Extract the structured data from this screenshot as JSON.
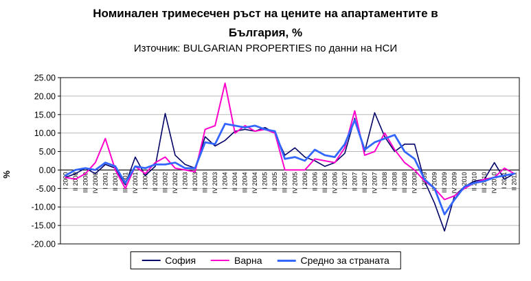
{
  "title_line1": "Номинален тримесечен ръст на цените на апартаментите в",
  "title_line2": "България, %",
  "subtitle": "Източник: BULGARIAN PROPERTIES по данни на НСИ",
  "chart_data": {
    "type": "line",
    "title": "Номинален тримесечен ръст на цените на апартаментите в България, %",
    "subtitle": "Източник: BULGARIAN PROPERTIES по данни на НСИ",
    "xlabel": "",
    "ylabel": "%",
    "ylim": [
      -20,
      25
    ],
    "ytick_step": 5,
    "yticks": [
      "25.00",
      "20.00",
      "15.00",
      "10.00",
      "5.00",
      "0.00",
      "-5.00",
      "-10.00",
      "-15.00",
      "-20.00"
    ],
    "grid": true,
    "legend_position": "bottom",
    "categories": [
      "I 2000",
      "II 2000",
      "III 2000",
      "IV 2000",
      "I 2001",
      "II 2001",
      "III 2001",
      "IV 2001",
      "I 2002",
      "II 2002",
      "III 2002",
      "IV 2002",
      "I 2003",
      "II 2003",
      "III 2003",
      "IV 2003",
      "I 2004",
      "II 2004",
      "III 2004",
      "IV 2004",
      "I 2005",
      "II 2005",
      "III 2005",
      "IV 2005",
      "I 2006",
      "II 2006",
      "III 2006",
      "IV 2006",
      "I 2007",
      "II 2007",
      "III 2007",
      "IV 2007",
      "I 2008",
      "II 2008",
      "III 2008",
      "IV 2008",
      "I 2009",
      "II 2009",
      "III 2009",
      "IV 2009",
      "I 2010",
      "II 2010",
      "III 2010",
      "IV 2010",
      "I 2011",
      "II 2011"
    ],
    "series": [
      {
        "name": "София",
        "color": "#000066",
        "width": 1.6,
        "values": [
          -2,
          -1,
          0.5,
          -1,
          1.5,
          0.5,
          -4,
          3.5,
          -1.5,
          1,
          15.3,
          4,
          1.5,
          0.5,
          9,
          6.5,
          8,
          10.5,
          11,
          10.5,
          11.5,
          10,
          4,
          6,
          3.5,
          2.5,
          1,
          2,
          4.5,
          14,
          5,
          15.5,
          9,
          5,
          7,
          7,
          -3,
          -9,
          -16.5,
          -7,
          -4.5,
          -3,
          -2.5,
          2,
          -2.5,
          -1
        ]
      },
      {
        "name": "Варна",
        "color": "#FF00CC",
        "width": 2,
        "values": [
          -2,
          -2.5,
          -1,
          2,
          8.5,
          0,
          -5,
          1,
          -1,
          2,
          3.5,
          0.5,
          0,
          -0.5,
          11,
          12,
          23.5,
          10,
          12,
          10.5,
          11,
          10,
          0,
          0,
          0,
          3,
          2.5,
          2,
          6,
          16,
          4,
          5,
          10,
          5.5,
          2,
          0,
          -3,
          -5,
          -8,
          -7,
          -5,
          -3.5,
          -2.5,
          -2,
          0.5,
          -1
        ]
      },
      {
        "name": "Средно за страната",
        "color": "#3366FF",
        "width": 2.8,
        "values": [
          -1.5,
          0,
          0.5,
          0,
          2,
          1,
          -3.5,
          1,
          0.5,
          1.5,
          1.5,
          2,
          0.5,
          0.5,
          7.5,
          7,
          12.5,
          12,
          11.5,
          12,
          11,
          10.5,
          3,
          3.5,
          2.5,
          5.5,
          4,
          3.5,
          7,
          13.5,
          5.5,
          7.5,
          8.5,
          9.5,
          5,
          3,
          -2.5,
          -5,
          -12,
          -8,
          -4.5,
          -3.5,
          -3,
          -2,
          -1.5,
          -1
        ]
      }
    ]
  }
}
